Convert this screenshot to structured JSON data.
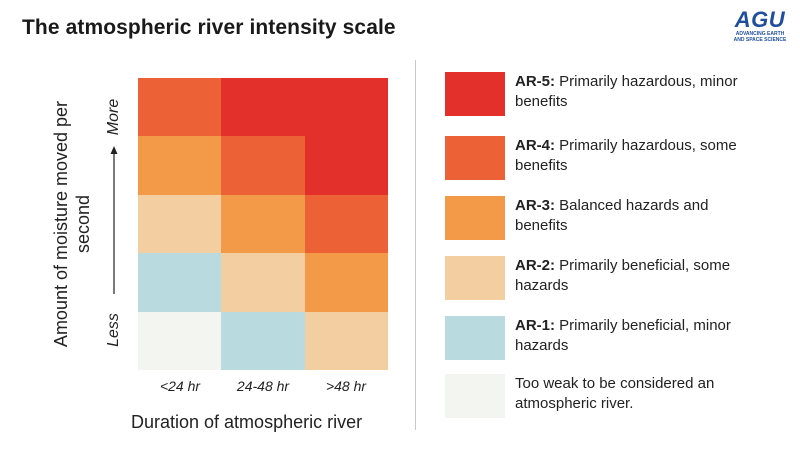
{
  "title": "The atmospheric river intensity scale",
  "logo": {
    "mark": "AGU",
    "tagline": "ADVANCING EARTH AND SPACE SCIENCE"
  },
  "axes": {
    "ylabel": "Amount of moisture moved per second",
    "more": "More",
    "less": "Less",
    "xlabel": "Duration of atmospheric river",
    "xticks": [
      "<24 hr",
      "24-48 hr",
      ">48 hr"
    ]
  },
  "colors": {
    "AR-5": "#e3302a",
    "AR-4": "#ec6236",
    "AR-3": "#f39a48",
    "AR-2": "#f3cea0",
    "AR-1": "#b9dbe0",
    "weak": "#f3f6f0"
  },
  "matrix": [
    [
      "AR-4",
      "AR-5",
      "AR-5"
    ],
    [
      "AR-3",
      "AR-4",
      "AR-5"
    ],
    [
      "AR-2",
      "AR-3",
      "AR-4"
    ],
    [
      "AR-1",
      "AR-2",
      "AR-3"
    ],
    [
      "weak",
      "AR-1",
      "AR-2"
    ]
  ],
  "legend": [
    {
      "code": "AR-5:",
      "text": "Primarily hazardous, minor benefits",
      "color_key": "AR-5"
    },
    {
      "code": "AR-4:",
      "text": "Primarily hazardous, some benefits",
      "color_key": "AR-4"
    },
    {
      "code": "AR-3:",
      "text": "Balanced hazards and benefits",
      "color_key": "AR-3"
    },
    {
      "code": "AR-2:",
      "text": "Primarily beneficial, some hazards",
      "color_key": "AR-2"
    },
    {
      "code": "AR-1:",
      "text": "Primarily beneficial, minor hazards",
      "color_key": "AR-1"
    },
    {
      "code": "",
      "text": "Too weak to be considered an atmospheric river.",
      "color_key": "weak"
    }
  ]
}
